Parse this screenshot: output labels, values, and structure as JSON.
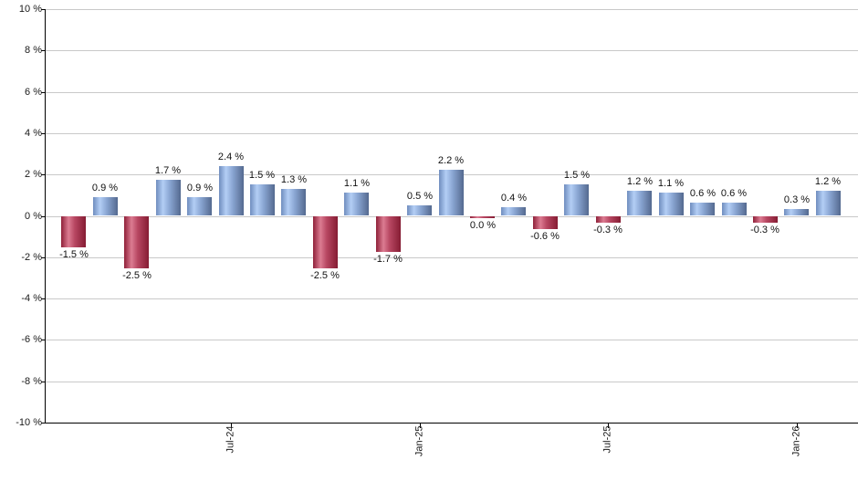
{
  "chart_data": {
    "type": "bar",
    "title": "",
    "xlabel": "",
    "ylabel": "",
    "ylim": [
      -10,
      10
    ],
    "grid": true,
    "legend": "none",
    "y_tick_labels": [
      "10 %",
      "8 %",
      "6 %",
      "4 %",
      "2 %",
      "0 %",
      "-2 %",
      "-4 %",
      "-6 %",
      "-8 %",
      "-10 %"
    ],
    "y_tick_values": [
      10,
      8,
      6,
      4,
      2,
      0,
      -2,
      -4,
      -6,
      -8,
      -10
    ],
    "x_ticks": [
      {
        "label": "Jul-24",
        "bar_index": 5
      },
      {
        "label": "Jan-25",
        "bar_index": 11
      },
      {
        "label": "Jul-25",
        "bar_index": 17
      },
      {
        "label": "Jan-26",
        "bar_index": 23
      }
    ],
    "bars": [
      {
        "value": -1.5,
        "label": "-1.5 %",
        "color": "negative"
      },
      {
        "value": 0.9,
        "label": "0.9 %",
        "color": "positive"
      },
      {
        "value": -2.5,
        "label": "-2.5 %",
        "color": "negative"
      },
      {
        "value": 1.7,
        "label": "1.7 %",
        "color": "positive"
      },
      {
        "value": 0.9,
        "label": "0.9 %",
        "color": "positive"
      },
      {
        "value": 2.4,
        "label": "2.4 %",
        "color": "positive"
      },
      {
        "value": 1.5,
        "label": "1.5 %",
        "color": "positive"
      },
      {
        "value": 1.3,
        "label": "1.3 %",
        "color": "positive"
      },
      {
        "value": -2.5,
        "label": "-2.5 %",
        "color": "negative"
      },
      {
        "value": 1.1,
        "label": "1.1 %",
        "color": "positive"
      },
      {
        "value": -1.7,
        "label": "-1.7 %",
        "color": "negative"
      },
      {
        "value": 0.5,
        "label": "0.5 %",
        "color": "positive"
      },
      {
        "value": 2.2,
        "label": "2.2 %",
        "color": "positive"
      },
      {
        "value": 0.0,
        "label": "0.0 %",
        "color": "negative"
      },
      {
        "value": 0.4,
        "label": "0.4 %",
        "color": "positive"
      },
      {
        "value": -0.6,
        "label": "-0.6 %",
        "color": "negative"
      },
      {
        "value": 1.5,
        "label": "1.5 %",
        "color": "positive"
      },
      {
        "value": -0.3,
        "label": "-0.3 %",
        "color": "negative"
      },
      {
        "value": 1.2,
        "label": "1.2 %",
        "color": "positive"
      },
      {
        "value": 1.1,
        "label": "1.1 %",
        "color": "positive"
      },
      {
        "value": 0.6,
        "label": "0.6 %",
        "color": "positive"
      },
      {
        "value": 0.6,
        "label": "0.6 %",
        "color": "positive"
      },
      {
        "value": -0.3,
        "label": "-0.3 %",
        "color": "negative"
      },
      {
        "value": 0.3,
        "label": "0.3 %",
        "color": "positive"
      },
      {
        "value": 1.2,
        "label": "1.2 %",
        "color": "positive"
      }
    ],
    "colors": {
      "gridline": "#c9c9c9",
      "axis": "#000000",
      "label_text": "#111111",
      "positive_stops": [
        {
          "color": "#6f8dbe",
          "at": 0
        },
        {
          "color": "#b3cef5",
          "at": 28
        },
        {
          "color": "#8aa6d3",
          "at": 55
        },
        {
          "color": "#54698f",
          "at": 100
        }
      ],
      "negative_stops": [
        {
          "color": "#8f2039",
          "at": 0
        },
        {
          "color": "#dc7c92",
          "at": 30
        },
        {
          "color": "#b84762",
          "at": 55
        },
        {
          "color": "#851c33",
          "at": 100
        }
      ]
    }
  }
}
